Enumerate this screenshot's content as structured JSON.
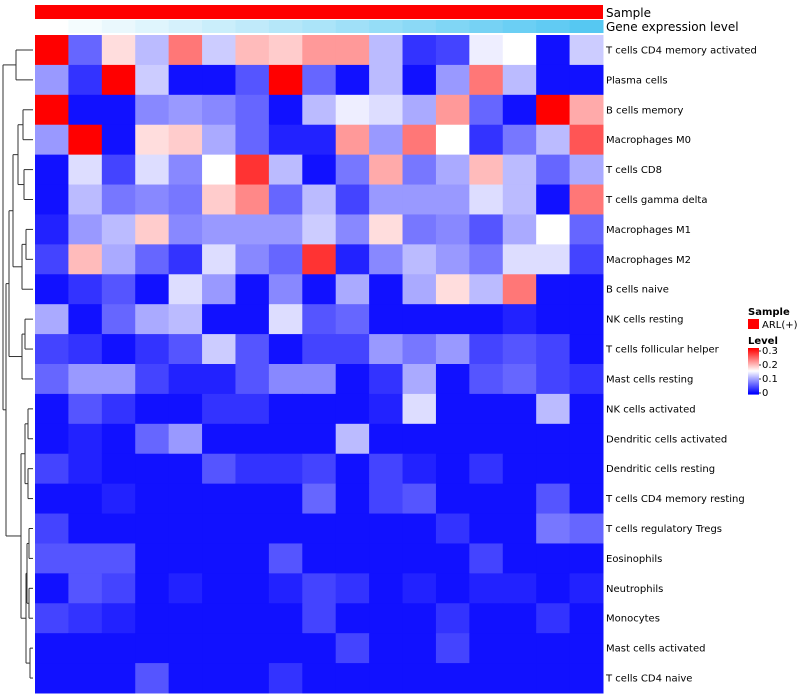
{
  "chart_data": {
    "type": "heatmap",
    "annotation_tracks": [
      {
        "name": "Sample",
        "color": "#ff0000"
      },
      {
        "name": "Gene expression level",
        "gradient": [
          "#ffffff",
          "#56c8f2"
        ]
      }
    ],
    "rows": [
      "T cells CD4 memory activated",
      "Plasma cells",
      "B cells memory",
      "Macrophages M0",
      "T cells CD8",
      "T cells gamma delta",
      "Macrophages M1",
      "Macrophages M2",
      "B cells naive",
      "NK cells resting",
      "T cells follicular helper",
      "Mast cells resting",
      "NK cells activated",
      "Dendritic cells activated",
      "Dendritic cells resting",
      "T cells CD4 memory resting",
      "T cells regulatory  Tregs",
      "Eosinophils",
      "Neutrophils",
      "Monocytes",
      "Mast cells activated",
      "T cells CD4 naive"
    ],
    "values": [
      [
        0.3,
        0.06,
        0.17,
        0.11,
        0.23,
        0.12,
        0.19,
        0.18,
        0.21,
        0.21,
        0.11,
        0.03,
        0.04,
        0.14,
        0.15,
        0.01,
        0.12
      ],
      [
        0.09,
        0.03,
        0.3,
        0.12,
        0.01,
        0.01,
        0.05,
        0.3,
        0.06,
        0.01,
        0.11,
        0.01,
        0.09,
        0.23,
        0.11,
        0.01,
        0.01
      ],
      [
        0.3,
        0.01,
        0.01,
        0.08,
        0.09,
        0.08,
        0.06,
        0.01,
        0.11,
        0.14,
        0.13,
        0.1,
        0.21,
        0.06,
        0.01,
        0.3,
        0.2
      ],
      [
        0.09,
        0.3,
        0.01,
        0.17,
        0.18,
        0.1,
        0.06,
        0.02,
        0.02,
        0.21,
        0.09,
        0.23,
        0.15,
        0.03,
        0.07,
        0.11,
        0.25
      ],
      [
        0.01,
        0.13,
        0.04,
        0.13,
        0.08,
        0.15,
        0.27,
        0.11,
        0.01,
        0.07,
        0.2,
        0.07,
        0.1,
        0.19,
        0.11,
        0.06,
        0.1
      ],
      [
        0.01,
        0.11,
        0.07,
        0.08,
        0.07,
        0.18,
        0.22,
        0.06,
        0.11,
        0.04,
        0.09,
        0.09,
        0.09,
        0.13,
        0.11,
        0.01,
        0.23
      ],
      [
        0.02,
        0.09,
        0.11,
        0.18,
        0.08,
        0.09,
        0.09,
        0.09,
        0.12,
        0.08,
        0.17,
        0.07,
        0.08,
        0.05,
        0.1,
        0.15,
        0.06
      ],
      [
        0.04,
        0.19,
        0.1,
        0.06,
        0.03,
        0.13,
        0.08,
        0.06,
        0.27,
        0.02,
        0.08,
        0.11,
        0.09,
        0.07,
        0.13,
        0.13,
        0.04
      ],
      [
        0.01,
        0.03,
        0.05,
        0.01,
        0.13,
        0.09,
        0.01,
        0.08,
        0.01,
        0.1,
        0.01,
        0.1,
        0.17,
        0.11,
        0.23,
        0.01,
        0.01
      ],
      [
        0.1,
        0.01,
        0.06,
        0.1,
        0.11,
        0.01,
        0.01,
        0.13,
        0.05,
        0.06,
        0.01,
        0.01,
        0.01,
        0.01,
        0.02,
        0.01,
        0.01
      ],
      [
        0.04,
        0.03,
        0.01,
        0.03,
        0.05,
        0.12,
        0.05,
        0.01,
        0.04,
        0.04,
        0.09,
        0.07,
        0.09,
        0.04,
        0.05,
        0.04,
        0.01
      ],
      [
        0.06,
        0.09,
        0.09,
        0.04,
        0.02,
        0.02,
        0.05,
        0.08,
        0.08,
        0.01,
        0.03,
        0.1,
        0.01,
        0.05,
        0.06,
        0.04,
        0.03
      ],
      [
        0.01,
        0.05,
        0.03,
        0.01,
        0.01,
        0.03,
        0.03,
        0.01,
        0.01,
        0.01,
        0.02,
        0.13,
        0.01,
        0.01,
        0.01,
        0.11,
        0.01
      ],
      [
        0.01,
        0.02,
        0.01,
        0.06,
        0.09,
        0.01,
        0.01,
        0.01,
        0.01,
        0.11,
        0.01,
        0.01,
        0.01,
        0.01,
        0.01,
        0.01,
        0.01
      ],
      [
        0.04,
        0.02,
        0.01,
        0.01,
        0.01,
        0.05,
        0.03,
        0.03,
        0.04,
        0.01,
        0.04,
        0.02,
        0.01,
        0.03,
        0.01,
        0.01,
        0.01
      ],
      [
        0.01,
        0.01,
        0.02,
        0.01,
        0.01,
        0.01,
        0.01,
        0.01,
        0.06,
        0.01,
        0.04,
        0.05,
        0.01,
        0.01,
        0.01,
        0.05,
        0.01
      ],
      [
        0.04,
        0.01,
        0.01,
        0.01,
        0.01,
        0.01,
        0.01,
        0.01,
        0.01,
        0.01,
        0.01,
        0.01,
        0.03,
        0.01,
        0.01,
        0.07,
        0.06
      ],
      [
        0.05,
        0.05,
        0.05,
        0.01,
        0.01,
        0.01,
        0.01,
        0.05,
        0.01,
        0.01,
        0.01,
        0.01,
        0.01,
        0.04,
        0.01,
        0.01,
        0.01
      ],
      [
        0.01,
        0.05,
        0.04,
        0.01,
        0.02,
        0.01,
        0.01,
        0.02,
        0.04,
        0.03,
        0.01,
        0.02,
        0.01,
        0.02,
        0.02,
        0.01,
        0.02
      ],
      [
        0.04,
        0.03,
        0.02,
        0.01,
        0.01,
        0.01,
        0.01,
        0.01,
        0.04,
        0.01,
        0.01,
        0.01,
        0.03,
        0.01,
        0.01,
        0.03,
        0.01
      ],
      [
        0.01,
        0.01,
        0.01,
        0.01,
        0.01,
        0.01,
        0.01,
        0.01,
        0.01,
        0.04,
        0.01,
        0.01,
        0.04,
        0.01,
        0.01,
        0.01,
        0.01
      ],
      [
        0.01,
        0.01,
        0.01,
        0.05,
        0.01,
        0.01,
        0.01,
        0.03,
        0.01,
        0.01,
        0.01,
        0.01,
        0.01,
        0.01,
        0.01,
        0.01,
        0.01
      ]
    ],
    "color_scale": {
      "min": 0,
      "max": 0.3,
      "colors": [
        "#0000ff",
        "#ffffff",
        "#ff0000"
      ]
    },
    "legend": {
      "sample": {
        "title": "Sample",
        "entry": "ARL(+)",
        "color": "#ff0000"
      },
      "level": {
        "title": "Level",
        "ticks": [
          "0.3",
          "0.2",
          "0.1",
          "0"
        ]
      }
    },
    "dendrogram": "row",
    "legend_position": "right"
  }
}
